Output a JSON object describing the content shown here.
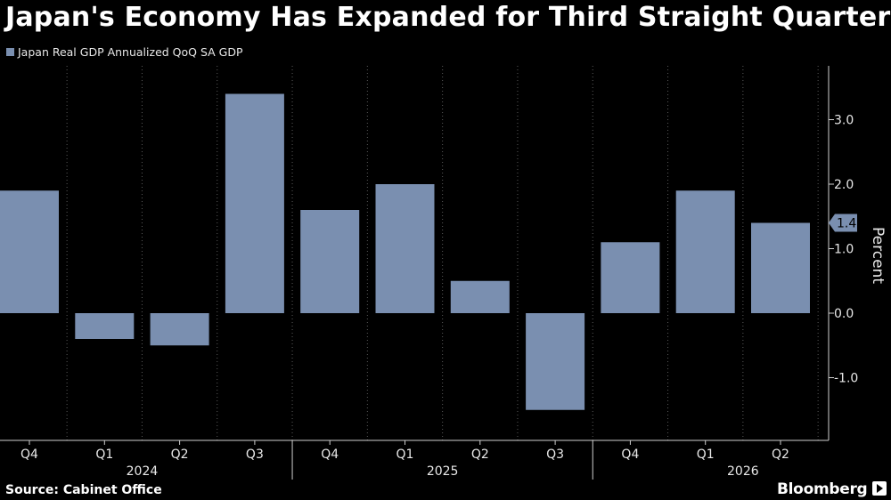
{
  "title": "Japan's Economy Has Expanded for Third Straight Quarter",
  "source": "Source: Cabinet Office",
  "brand": "Bloomberg",
  "chart_data": {
    "type": "bar",
    "title": "Japan's Economy Has Expanded for Third Straight Quarter",
    "categories": [
      "Q4",
      "Q1",
      "Q2",
      "Q3",
      "Q4",
      "Q1",
      "Q2",
      "Q3",
      "Q4",
      "Q1",
      "Q2"
    ],
    "year_labels": [
      {
        "label": "2024",
        "at": 1.5
      },
      {
        "label": "2025",
        "at": 5.5
      },
      {
        "label": "2026",
        "at": 9.5
      }
    ],
    "series": [
      {
        "name": "Japan Real GDP Annualized QoQ SA GDP",
        "color": "#7a8fb0",
        "values": [
          1.9,
          -0.4,
          -0.5,
          3.4,
          1.6,
          2.0,
          0.5,
          -1.5,
          1.1,
          1.9,
          1.4
        ]
      }
    ],
    "ylabel": "Percent",
    "ylim": [
      -2.0,
      3.8
    ],
    "yticks": [
      -1.0,
      0.0,
      1.0,
      2.0,
      3.0
    ],
    "ytick_labels": [
      "-1.0",
      "0.0",
      "1.0",
      "2.0",
      "3.0"
    ],
    "last_value_label": "1.4",
    "legend_position": "top-left",
    "grid": false
  }
}
